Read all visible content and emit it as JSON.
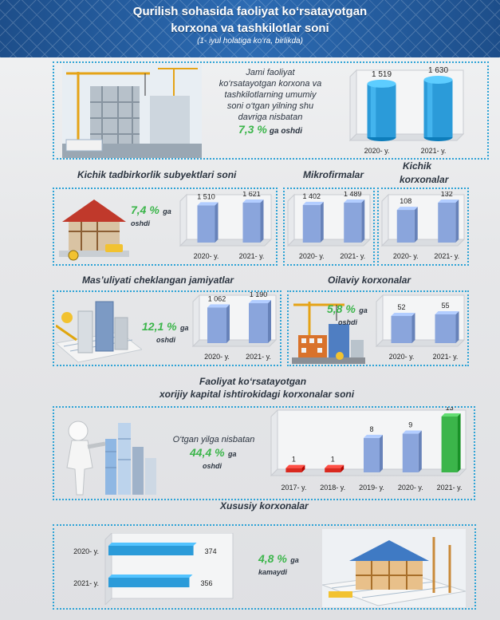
{
  "header": {
    "title_line1": "Qurilish sohasida faoliyat ko‘rsatayotgan",
    "title_line2": "korxona va tashkilotlar soni",
    "subtitle": "(1- iyul holatiga ko‘ra, birlikda)"
  },
  "colors": {
    "header": "#245ea0",
    "blue": "#2b9bd9",
    "periwinkle": "#8aa5dc",
    "green": "#3bb54a",
    "red": "#d9281e",
    "dotted": "#2da3d6"
  },
  "total": {
    "text_lines": [
      "Jami faoliyat",
      "ko‘rsatayotgan korxona va",
      "tashkilotlarning umumiy",
      "soni o‘tgan yilning shu",
      "davriga nisbatan"
    ],
    "pct": "7,3 %",
    "suffix": "ga oshdi"
  },
  "small_biz": {
    "title": "Kichik tadbirkorlik subyektlari soni",
    "pct": "7,4 %",
    "suffix1": "ga",
    "suffix2": "oshdi"
  },
  "micro": {
    "title": "Mikrofirmalar"
  },
  "kichik": {
    "title1": "Kichik",
    "title2": "korxonalar"
  },
  "mchj": {
    "title": "Mas’uliyati cheklangan jamiyatlar",
    "pct": "12,1 %",
    "suffix1": "ga",
    "suffix2": "oshdi"
  },
  "oilaviy": {
    "title": "Oilaviy korxonalar",
    "pct": "5,8 %",
    "suffix1": "ga",
    "suffix2": "oshdi"
  },
  "foreign": {
    "title1": "Faoliyat ko‘rsatayotgan",
    "title2": "xorijiy kapital ishtirokidagi korxonalar soni",
    "note": "O‘tgan yilga nisbatan",
    "pct": "44,4 %",
    "suffix1": "ga",
    "suffix2": "oshdi"
  },
  "private": {
    "title": "Xususiy korxonalar",
    "pct": "4,8 %",
    "suffix1": "ga",
    "suffix2": "kamaydi"
  },
  "icons": [
    "construction-site-icon",
    "house-frame-icon",
    "blueprint-buildings-icon",
    "crane-building-icon",
    "person-leaning-icon",
    "house-under-construction-icon"
  ],
  "chart_data": [
    {
      "id": "total",
      "type": "bar",
      "categories": [
        "2020- y.",
        "2021- y."
      ],
      "values": [
        1519,
        1630
      ],
      "labels": [
        "1 519",
        "1 630"
      ],
      "color": "blue"
    },
    {
      "id": "small_biz",
      "type": "bar",
      "categories": [
        "2020- y.",
        "2021- y."
      ],
      "values": [
        1510,
        1621
      ],
      "labels": [
        "1 510",
        "1 621"
      ],
      "color": "periwinkle"
    },
    {
      "id": "micro",
      "type": "bar",
      "categories": [
        "2020- y.",
        "2021- y."
      ],
      "values": [
        1402,
        1489
      ],
      "labels": [
        "1 402",
        "1 489"
      ],
      "color": "periwinkle"
    },
    {
      "id": "kichik",
      "type": "bar",
      "categories": [
        "2020- y.",
        "2021- y."
      ],
      "values": [
        108,
        132
      ],
      "labels": [
        "108",
        "132"
      ],
      "color": "periwinkle"
    },
    {
      "id": "mchj",
      "type": "bar",
      "categories": [
        "2020- y.",
        "2021- y."
      ],
      "values": [
        1062,
        1190
      ],
      "labels": [
        "1 062",
        "1 190"
      ],
      "color": "periwinkle"
    },
    {
      "id": "oilaviy",
      "type": "bar",
      "categories": [
        "2020- y.",
        "2021- y."
      ],
      "values": [
        52,
        55
      ],
      "labels": [
        "52",
        "55"
      ],
      "color": "periwinkle"
    },
    {
      "id": "foreign",
      "type": "bar",
      "categories": [
        "2017- y.",
        "2018- y.",
        "2019- y.",
        "2020- y.",
        "2021- y."
      ],
      "values": [
        1,
        1,
        8,
        9,
        13
      ],
      "labels": [
        "1",
        "1",
        "8",
        "9",
        "13"
      ],
      "colors": [
        "red",
        "red",
        "periwinkle",
        "periwinkle",
        "green"
      ]
    },
    {
      "id": "private",
      "type": "bar",
      "orientation": "horizontal",
      "categories": [
        "2020- y.",
        "2021- y."
      ],
      "values": [
        374,
        356
      ],
      "labels": [
        "374",
        "356"
      ],
      "color": "blue"
    }
  ]
}
